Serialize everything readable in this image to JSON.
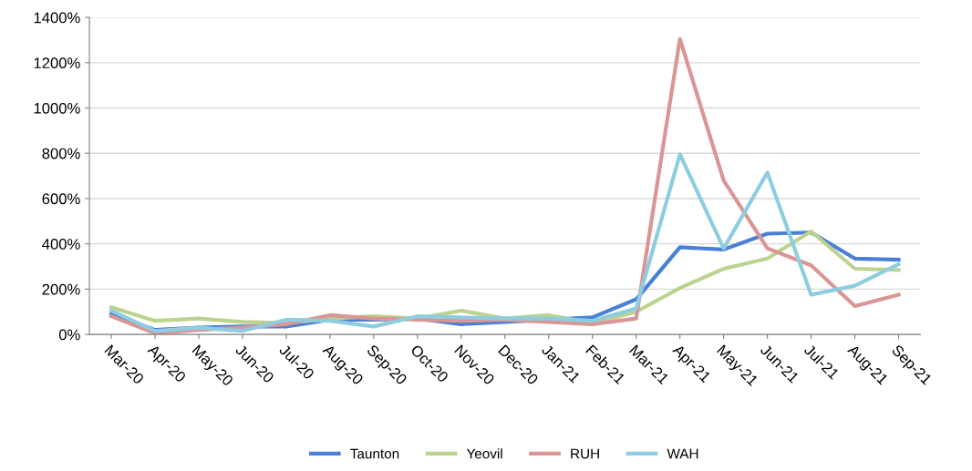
{
  "chart_data": {
    "type": "line",
    "categories": [
      "Mar-20",
      "Apr-20",
      "May-20",
      "Jun-20",
      "Jul-20",
      "Aug-20",
      "Sep-20",
      "Oct-20",
      "Nov-20",
      "Dec-20",
      "Jan-21",
      "Feb-21",
      "Mar-21",
      "Apr-21",
      "May-21",
      "Jun-21",
      "Jul-21",
      "Aug-21",
      "Sep-21"
    ],
    "series": [
      {
        "name": "Taunton",
        "color": "#4a7fd6",
        "values": [
          90,
          20,
          30,
          35,
          35,
          65,
          65,
          70,
          45,
          55,
          65,
          75,
          155,
          385,
          375,
          445,
          450,
          335,
          330
        ]
      },
      {
        "name": "Yeovil",
        "color": "#bcd38f",
        "values": [
          120,
          60,
          70,
          55,
          50,
          70,
          80,
          70,
          105,
          70,
          85,
          50,
          100,
          205,
          290,
          335,
          455,
          290,
          285
        ]
      },
      {
        "name": "RUH",
        "color": "#d99694",
        "values": [
          80,
          5,
          20,
          30,
          45,
          85,
          70,
          65,
          60,
          65,
          55,
          45,
          70,
          1305,
          680,
          380,
          305,
          125,
          175
        ]
      },
      {
        "name": "WAH",
        "color": "#8ecde0",
        "values": [
          105,
          15,
          30,
          15,
          65,
          60,
          35,
          80,
          75,
          70,
          70,
          60,
          115,
          795,
          380,
          715,
          175,
          215,
          310
        ]
      }
    ],
    "ylim": [
      0,
      1400
    ],
    "yticks": [
      {
        "value": 0,
        "label": "0%"
      },
      {
        "value": 200,
        "label": "200%"
      },
      {
        "value": 400,
        "label": "400%"
      },
      {
        "value": 600,
        "label": "600%"
      },
      {
        "value": 800,
        "label": "800%"
      },
      {
        "value": 1000,
        "label": "1000%"
      },
      {
        "value": 1200,
        "label": "1200%"
      },
      {
        "value": 1400,
        "label": "1400%"
      }
    ],
    "grid": "y",
    "legend": "bottom",
    "marker": "none",
    "line_style": "solid"
  }
}
